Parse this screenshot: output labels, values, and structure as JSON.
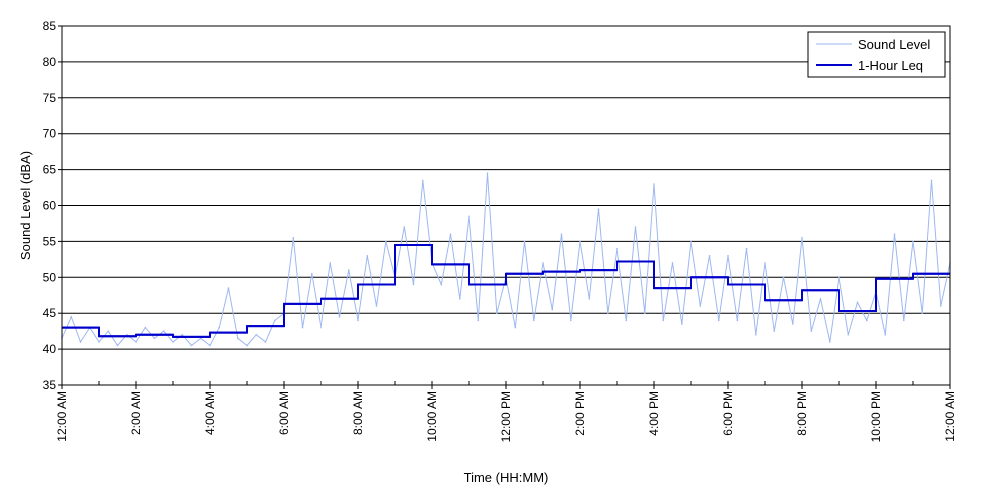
{
  "chart_data": {
    "type": "line",
    "title": "",
    "xlabel": "Time (HH:MM)",
    "ylabel": "Sound Level (dBA)",
    "xlim": [
      0,
      24
    ],
    "ylim": [
      35,
      85
    ],
    "y_ticks": [
      35,
      40,
      45,
      50,
      55,
      60,
      65,
      70,
      75,
      80,
      85
    ],
    "x_ticks": [
      0,
      2,
      4,
      6,
      8,
      10,
      12,
      14,
      16,
      18,
      20,
      22,
      24
    ],
    "x_tick_labels": [
      "12:00 AM",
      "2:00 AM",
      "4:00 AM",
      "6:00 AM",
      "8:00 AM",
      "10:00 AM",
      "12:00 PM",
      "2:00 PM",
      "4:00 PM",
      "6:00 PM",
      "8:00 PM",
      "10:00 PM",
      "12:00 AM"
    ],
    "grid": "horizontal",
    "legend_position": "top-right",
    "series": [
      {
        "name": "Sound Level",
        "color": "#9db7f0",
        "style": "thin",
        "x": [
          0,
          0.25,
          0.5,
          0.75,
          1,
          1.25,
          1.5,
          1.75,
          2,
          2.25,
          2.5,
          2.75,
          3,
          3.25,
          3.5,
          3.75,
          4,
          4.25,
          4.5,
          4.75,
          5,
          5.25,
          5.5,
          5.75,
          6,
          6.25,
          6.5,
          6.75,
          7,
          7.25,
          7.5,
          7.75,
          8,
          8.25,
          8.5,
          8.75,
          9,
          9.25,
          9.5,
          9.75,
          10,
          10.25,
          10.5,
          10.75,
          11,
          11.25,
          11.5,
          11.75,
          12,
          12.25,
          12.5,
          12.75,
          13,
          13.25,
          13.5,
          13.75,
          14,
          14.25,
          14.5,
          14.75,
          15,
          15.25,
          15.5,
          15.75,
          16,
          16.25,
          16.5,
          16.75,
          17,
          17.25,
          17.5,
          17.75,
          18,
          18.25,
          18.5,
          18.75,
          19,
          19.25,
          19.5,
          19.75,
          20,
          20.25,
          20.5,
          20.75,
          21,
          21.25,
          21.5,
          21.75,
          22,
          22.25,
          22.5,
          22.75,
          23,
          23.25,
          23.5,
          23.75,
          24
        ],
        "y": [
          41.5,
          44.5,
          41.0,
          43.0,
          41.0,
          42.5,
          40.5,
          42.0,
          41.0,
          43.0,
          41.5,
          42.5,
          41.0,
          42.0,
          40.5,
          41.5,
          40.5,
          43.0,
          48.5,
          41.5,
          40.5,
          42.0,
          41.0,
          44.0,
          45.0,
          55.5,
          43.0,
          50.5,
          43.0,
          52.0,
          44.5,
          51.0,
          44.0,
          53.0,
          46.0,
          55.0,
          50.0,
          57.0,
          49.0,
          63.5,
          52.0,
          49.0,
          56.0,
          47.0,
          58.5,
          44.0,
          64.5,
          45.0,
          50.0,
          43.0,
          55.0,
          44.0,
          52.0,
          45.5,
          56.0,
          44.0,
          55.0,
          47.0,
          59.5,
          45.0,
          54.0,
          44.0,
          57.0,
          45.0,
          63.0,
          44.0,
          52.0,
          43.5,
          55.0,
          46.0,
          53.0,
          44.0,
          53.0,
          44.0,
          54.0,
          42.0,
          52.0,
          42.5,
          50.0,
          43.5,
          55.5,
          42.5,
          47.0,
          41.0,
          50.0,
          42.0,
          46.5,
          44.0,
          48.0,
          42.0,
          56.0,
          44.0,
          55.0,
          45.0,
          63.5,
          46.0,
          52.0
        ]
      },
      {
        "name": "1-Hour Leq",
        "color": "#0000cc",
        "style": "step",
        "hourly_values": [
          43.0,
          41.8,
          42.0,
          41.7,
          42.3,
          43.2,
          46.3,
          47.0,
          49.0,
          54.5,
          51.8,
          49.0,
          50.5,
          50.8,
          51.0,
          52.2,
          48.5,
          50.0,
          49.0,
          46.8,
          48.2,
          45.3,
          49.8,
          50.5
        ]
      }
    ]
  }
}
